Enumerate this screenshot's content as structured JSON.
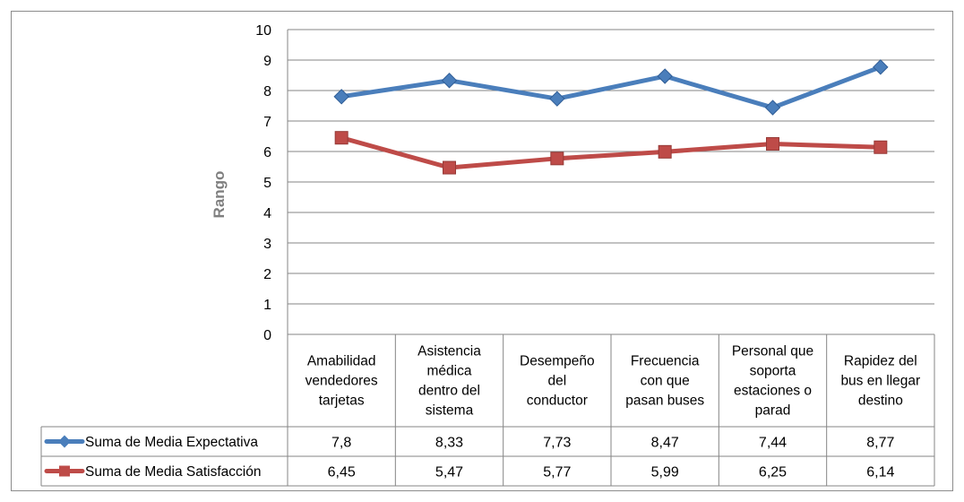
{
  "chart_data": {
    "type": "line",
    "ylabel": "Rango",
    "xlabel": "",
    "ylim": [
      0,
      10
    ],
    "yticks": [
      0,
      1,
      2,
      3,
      4,
      5,
      6,
      7,
      8,
      9,
      10
    ],
    "grid": true,
    "legend_placement": "data-table-left",
    "categories": [
      [
        "Amabilidad",
        "vendedores",
        "tarjetas"
      ],
      [
        "Asistencia",
        "médica",
        "dentro del",
        "sistema"
      ],
      [
        "Desempeño",
        "del",
        "conductor"
      ],
      [
        "Frecuencia",
        "con que",
        "pasan buses"
      ],
      [
        "Personal que",
        "soporta",
        "estaciones o",
        "parad"
      ],
      [
        "Rapidez del",
        "bus en llegar",
        "destino"
      ]
    ],
    "series": [
      {
        "name": "Suma de Media Expectativa",
        "color": "#4a7ebb",
        "marker": "diamond",
        "values": [
          7.8,
          8.33,
          7.73,
          8.47,
          7.44,
          8.77
        ],
        "labels": [
          "7,8",
          "8,33",
          "7,73",
          "8,47",
          "7,44",
          "8,77"
        ]
      },
      {
        "name": "Suma de Media Satisfacción",
        "color": "#be4b48",
        "marker": "square",
        "values": [
          6.45,
          5.47,
          5.77,
          5.99,
          6.25,
          6.14
        ],
        "labels": [
          "6,45",
          "5,47",
          "5,77",
          "5,99",
          "6,25",
          "6,14"
        ]
      }
    ]
  }
}
